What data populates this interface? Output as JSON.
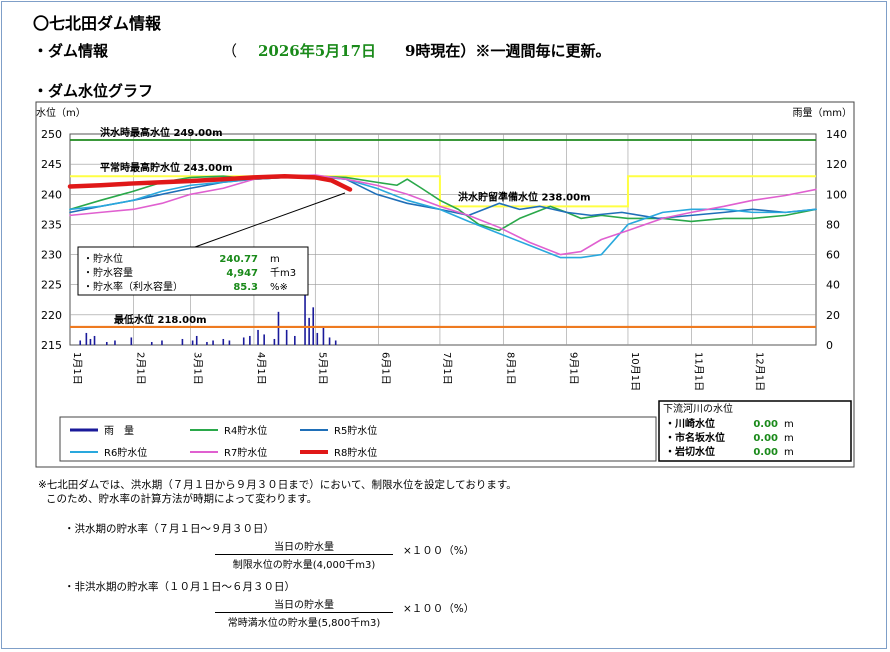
{
  "title": "〇七北田ダム情報",
  "dam_info": {
    "label": "・ダム情報",
    "open_paren": "（",
    "date": "2026年5月17日",
    "time": "9時現在）※一週間毎に更新。"
  },
  "graph_title": "・ダム水位グラフ",
  "chart_data": {
    "type": "line",
    "ylabel_left": "水位（m）",
    "ylabel_right": "雨量（mm）",
    "ylim": [
      215,
      250
    ],
    "ylim_right": [
      0,
      140
    ],
    "yticks": [
      "250",
      "245",
      "240",
      "235",
      "230",
      "225",
      "220",
      "215"
    ],
    "yticks_right": [
      "140",
      "120",
      "100",
      "80",
      "60",
      "40",
      "20",
      "0"
    ],
    "months": [
      "1月1日",
      "2月1日",
      "3月1日",
      "4月1日",
      "5月1日",
      "6月1日",
      "7月1日",
      "8月1日",
      "9月1日",
      "10月1日",
      "11月1日",
      "12月1日"
    ],
    "reference_lines": [
      {
        "label": "洪水時最高水位 249.00m",
        "value": 249.0,
        "color": "#1e8a1e"
      },
      {
        "label": "平常時最高貯水位 243.00m",
        "value": 243.0,
        "color": "#ffff44"
      },
      {
        "label": "洪水貯留準備水位 238.00m",
        "value": 238.0,
        "color": "#ffff44"
      },
      {
        "label": "最低水位 218.00m",
        "value": 218.0,
        "color": "#ee7a20"
      }
    ],
    "series": [
      {
        "name": "R4貯水位",
        "color": "#2aa84a",
        "width": 1.6,
        "x": [
          0,
          15,
          31,
          45,
          59,
          75,
          90,
          105,
          120,
          135,
          150,
          160,
          165,
          172,
          181,
          190,
          200,
          210,
          220,
          235,
          243,
          250,
          260,
          273,
          290,
          304,
          320,
          334,
          350,
          365
        ],
        "y": [
          237.5,
          239,
          240.5,
          242,
          242.8,
          243,
          242.5,
          242.8,
          243,
          242.8,
          242,
          241.5,
          242.5,
          241,
          239,
          237.5,
          235,
          234,
          236,
          238,
          237,
          236,
          236.5,
          236,
          236,
          235.5,
          236,
          236,
          236.5,
          237.5
        ]
      },
      {
        "name": "R5貯水位",
        "color": "#1f6fb8",
        "width": 1.6,
        "x": [
          0,
          15,
          31,
          45,
          59,
          75,
          90,
          105,
          120,
          135,
          150,
          165,
          181,
          195,
          210,
          220,
          230,
          243,
          255,
          270,
          288,
          304,
          320,
          334,
          350,
          365
        ],
        "y": [
          237,
          238,
          239,
          240,
          241,
          242,
          242.5,
          242.8,
          243,
          242.5,
          240,
          238.5,
          237.5,
          236.5,
          238.5,
          237.5,
          238,
          237,
          236.5,
          237,
          236,
          236.5,
          237,
          237.5,
          237,
          237.5
        ]
      },
      {
        "name": "R6貯水位",
        "color": "#29a8dd",
        "width": 1.6,
        "x": [
          0,
          15,
          31,
          45,
          59,
          75,
          90,
          105,
          120,
          135,
          150,
          165,
          181,
          195,
          210,
          225,
          240,
          250,
          260,
          273,
          290,
          304,
          320,
          334,
          350,
          365
        ],
        "y": [
          237.5,
          238,
          239,
          240.5,
          241.5,
          242,
          242.5,
          242.8,
          243,
          242.5,
          241,
          239,
          237.5,
          235.5,
          233.5,
          231.5,
          229.5,
          229.5,
          230,
          235,
          237,
          237.5,
          237.5,
          237,
          237,
          237.5
        ]
      },
      {
        "name": "R7貯水位",
        "color": "#e060d0",
        "width": 1.6,
        "x": [
          0,
          15,
          31,
          45,
          59,
          75,
          90,
          105,
          120,
          135,
          150,
          165,
          181,
          195,
          210,
          225,
          240,
          250,
          260,
          273,
          290,
          304,
          320,
          334,
          350,
          365
        ],
        "y": [
          236.5,
          237,
          237.5,
          238.5,
          240,
          241,
          242.5,
          243,
          243.2,
          242.5,
          241.5,
          240,
          238,
          236.5,
          234.5,
          232,
          230,
          230.5,
          232.5,
          234,
          236,
          237,
          238,
          239,
          239.8,
          240.8
        ]
      },
      {
        "name": "R8貯水位",
        "color": "#e01818",
        "width": 4.5,
        "x": [
          0,
          15,
          31,
          45,
          59,
          75,
          90,
          105,
          120,
          128,
          137
        ],
        "y": [
          241.3,
          241.5,
          241.8,
          242,
          242.2,
          242.5,
          242.8,
          243,
          242.8,
          242.3,
          240.8
        ]
      }
    ],
    "rain": {
      "name": "雨　量",
      "color": "#1a1a9a",
      "x": [
        5,
        8,
        10,
        12,
        18,
        22,
        30,
        40,
        45,
        55,
        60,
        62,
        67,
        70,
        75,
        78,
        85,
        88,
        92,
        95,
        100,
        102,
        106,
        110,
        115,
        117,
        119,
        121,
        124,
        127,
        130
      ],
      "y": [
        3,
        8,
        4,
        6,
        2,
        3,
        5,
        2,
        3,
        4,
        3,
        6,
        2,
        3,
        4,
        3,
        5,
        6,
        10,
        7,
        4,
        22,
        10,
        6,
        40,
        18,
        25,
        8,
        12,
        5,
        3
      ]
    },
    "flood_limit_line": {
      "x": [
        0,
        181,
        181,
        273,
        273,
        365
      ],
      "y": [
        243,
        243,
        238,
        238,
        243,
        243
      ]
    },
    "legend_placement": "bottom"
  },
  "callout": {
    "rows": [
      {
        "label": "・貯水位",
        "value": "240.77",
        "unit": "m"
      },
      {
        "label": "・貯水容量",
        "value": "4,947",
        "unit": "千m3"
      },
      {
        "label": "・貯水率（利水容量）",
        "value": "85.3",
        "unit": "%※"
      }
    ]
  },
  "downstream": {
    "title": "下流河川の水位",
    "rows": [
      {
        "label": "・川崎水位",
        "value": "0.00",
        "unit": "m"
      },
      {
        "label": "・市名坂水位",
        "value": "0.00",
        "unit": "m"
      },
      {
        "label": "・岩切水位",
        "value": "0.00",
        "unit": "m"
      }
    ]
  },
  "notes": {
    "line1": "※七北田ダムでは、洪水期（７月１日から９月３０日まで）において、制限水位を設定しております。",
    "line2": "このため、貯水率の計算方法が時期によって変わります。",
    "flood_title": "・洪水期の貯水率（７月１日～９月３０日）",
    "flood_num": "当日の貯水量",
    "flood_den": "制限水位の貯水量(4,000千m3)",
    "flood_mult": "×１００（%）",
    "nonflood_title": "・非洪水期の貯水率（１０月１日～６月３０日）",
    "nonflood_num": "当日の貯水量",
    "nonflood_den": "常時満水位の貯水量(5,800千m3)",
    "nonflood_mult": "×１００（%）"
  }
}
